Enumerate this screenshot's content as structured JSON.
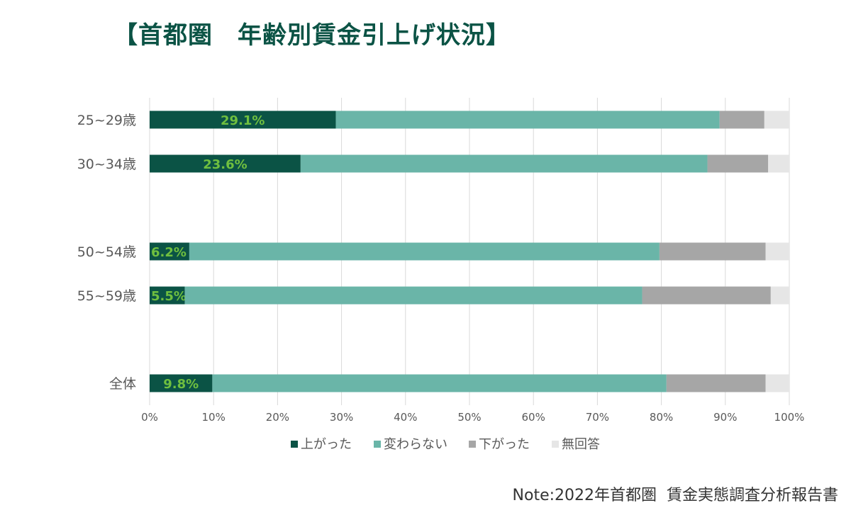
{
  "title": "【首都圏　年齢別賃金引上げ状況】",
  "note": "Note:2022年首都圏  賃金実態調査分析報告書",
  "colors": {
    "title": "#0b5345",
    "series": [
      "#0b5345",
      "#6ab5a8",
      "#a6a6a6",
      "#e6e6e6"
    ],
    "data_label": "#6fbf3f",
    "gridline": "#d9d9d9",
    "axis_text": "#595959"
  },
  "chart_data": {
    "type": "bar",
    "orientation": "horizontal",
    "stacked": "percent",
    "categories": [
      "25~29歳",
      "30~34歳",
      "50~54歳",
      "55~59歳",
      "全体"
    ],
    "series": [
      {
        "name": "上がった",
        "values": [
          29.1,
          23.6,
          6.2,
          5.5,
          9.8
        ],
        "labels": [
          "29.1%",
          "23.6%",
          "6.2%",
          "5.5%",
          "9.8%"
        ]
      },
      {
        "name": "変わらない",
        "values": [
          60.0,
          63.6,
          73.5,
          71.5,
          71.0
        ]
      },
      {
        "name": "下がった",
        "values": [
          7.0,
          9.5,
          16.6,
          20.1,
          15.5
        ]
      },
      {
        "name": "無回答",
        "values": [
          3.9,
          3.3,
          3.7,
          2.9,
          3.7
        ]
      }
    ],
    "xticks": [
      "0%",
      "10%",
      "20%",
      "30%",
      "40%",
      "50%",
      "60%",
      "70%",
      "80%",
      "90%",
      "100%"
    ],
    "xlim": [
      0,
      100
    ],
    "grid": true,
    "legend": "bottom"
  }
}
